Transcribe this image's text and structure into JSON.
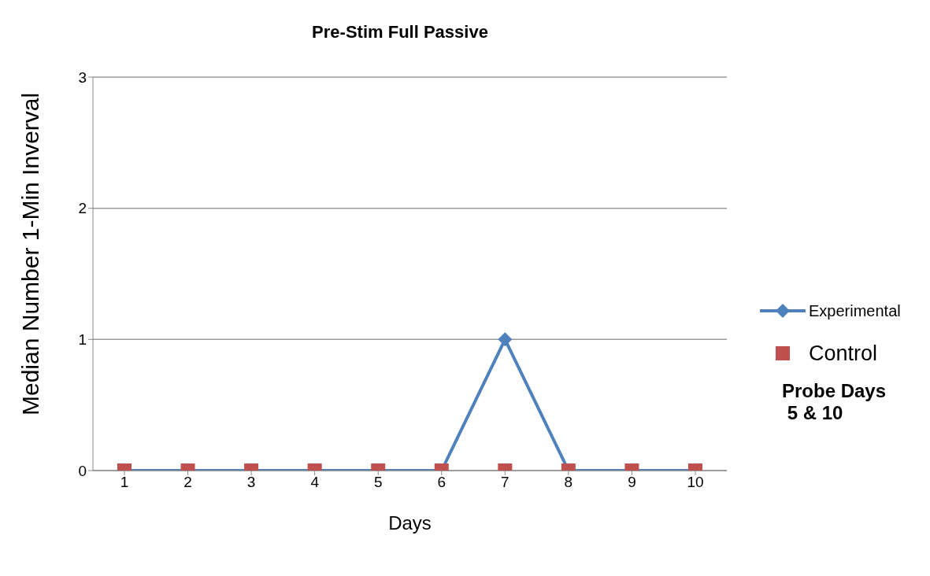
{
  "chart_data": {
    "type": "line",
    "title": "Pre-Stim Full Passive",
    "xlabel": "Days",
    "ylabel": "Median Number 1-Min Inverval",
    "categories": [
      "1",
      "2",
      "3",
      "4",
      "5",
      "6",
      "7",
      "8",
      "9",
      "10"
    ],
    "series": [
      {
        "name": "Experimental",
        "color": "#4f81bd",
        "values": [
          0,
          0,
          0,
          0,
          0,
          0,
          1,
          0,
          0,
          0
        ],
        "marker": "diamond"
      },
      {
        "name": "Control",
        "type": "scatter",
        "color": "#c0504d",
        "values": [
          0,
          0,
          0,
          0,
          0,
          0,
          0,
          0,
          0,
          0
        ],
        "marker": "square"
      }
    ],
    "ylim": [
      0,
      3
    ],
    "yticks": [
      0,
      1,
      2,
      3
    ],
    "grid": "y",
    "legend": "right",
    "annotations": [
      "Probe Days\n 5 & 10"
    ]
  }
}
